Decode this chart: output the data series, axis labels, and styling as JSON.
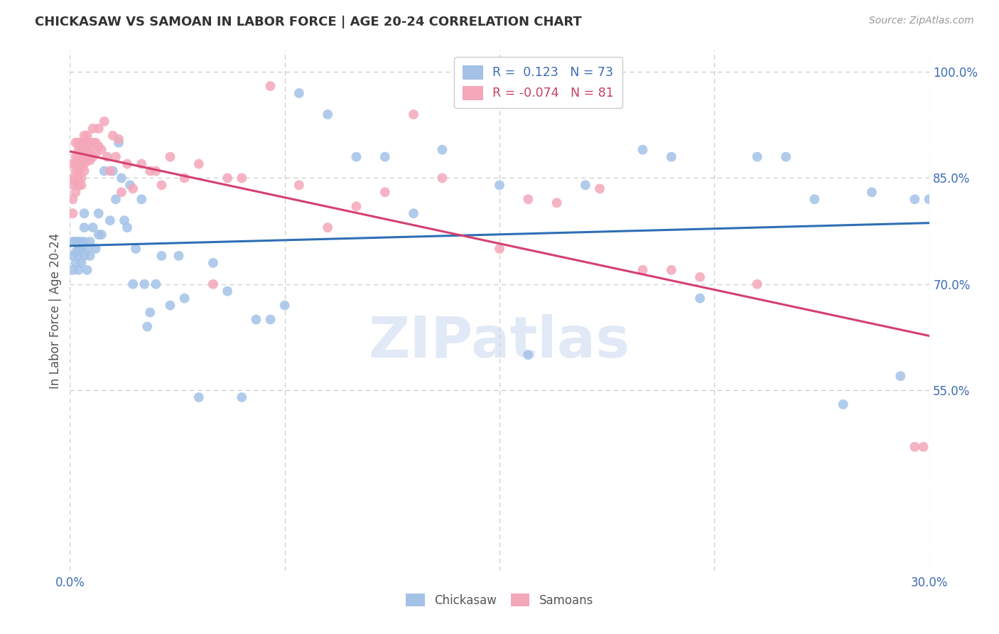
{
  "title": "CHICKASAW VS SAMOAN IN LABOR FORCE | AGE 20-24 CORRELATION CHART",
  "source": "Source: ZipAtlas.com",
  "ylabel": "In Labor Force | Age 20-24",
  "xlim": [
    0.0,
    0.3
  ],
  "ylim": [
    0.295,
    1.03
  ],
  "x_ticks": [
    0.0,
    0.075,
    0.15,
    0.225,
    0.3
  ],
  "x_tick_labels": [
    "0.0%",
    "",
    "",
    "",
    "30.0%"
  ],
  "y_ticks_right": [
    1.0,
    0.85,
    0.7,
    0.55
  ],
  "y_tick_labels_right": [
    "100.0%",
    "85.0%",
    "70.0%",
    "55.0%"
  ],
  "blue_color": "#a4c2e8",
  "pink_color": "#f4a7b9",
  "blue_line_color": "#2e6fb5",
  "pink_line_color": "#d44070",
  "R_blue": 0.123,
  "N_blue": 73,
  "R_pink": -0.074,
  "N_pink": 81,
  "legend_label_blue": "Chickasaw",
  "legend_label_pink": "Samoans",
  "watermark": "ZIPatlas",
  "background_color": "#ffffff",
  "grid_color": "#cccccc",
  "blue_scatter_x": [
    0.001,
    0.001,
    0.001,
    0.002,
    0.002,
    0.002,
    0.003,
    0.003,
    0.003,
    0.003,
    0.004,
    0.004,
    0.004,
    0.005,
    0.005,
    0.005,
    0.005,
    0.006,
    0.006,
    0.007,
    0.007,
    0.008,
    0.009,
    0.01,
    0.01,
    0.011,
    0.012,
    0.014,
    0.015,
    0.016,
    0.017,
    0.018,
    0.019,
    0.02,
    0.021,
    0.022,
    0.023,
    0.025,
    0.026,
    0.027,
    0.028,
    0.03,
    0.032,
    0.035,
    0.038,
    0.04,
    0.045,
    0.05,
    0.055,
    0.06,
    0.065,
    0.07,
    0.075,
    0.08,
    0.09,
    0.1,
    0.11,
    0.12,
    0.13,
    0.15,
    0.16,
    0.18,
    0.2,
    0.21,
    0.22,
    0.24,
    0.25,
    0.26,
    0.27,
    0.28,
    0.29,
    0.295,
    0.3
  ],
  "blue_scatter_y": [
    0.76,
    0.74,
    0.72,
    0.76,
    0.745,
    0.73,
    0.76,
    0.75,
    0.74,
    0.72,
    0.76,
    0.75,
    0.73,
    0.8,
    0.78,
    0.76,
    0.74,
    0.75,
    0.72,
    0.76,
    0.74,
    0.78,
    0.75,
    0.8,
    0.77,
    0.77,
    0.86,
    0.79,
    0.86,
    0.82,
    0.9,
    0.85,
    0.79,
    0.78,
    0.84,
    0.7,
    0.75,
    0.82,
    0.7,
    0.64,
    0.66,
    0.7,
    0.74,
    0.67,
    0.74,
    0.68,
    0.54,
    0.73,
    0.69,
    0.54,
    0.65,
    0.65,
    0.67,
    0.97,
    0.94,
    0.88,
    0.88,
    0.8,
    0.89,
    0.84,
    0.6,
    0.84,
    0.89,
    0.88,
    0.68,
    0.88,
    0.88,
    0.82,
    0.53,
    0.83,
    0.57,
    0.82,
    0.82
  ],
  "pink_scatter_x": [
    0.001,
    0.001,
    0.001,
    0.001,
    0.001,
    0.002,
    0.002,
    0.002,
    0.002,
    0.002,
    0.002,
    0.003,
    0.003,
    0.003,
    0.003,
    0.003,
    0.003,
    0.003,
    0.004,
    0.004,
    0.004,
    0.004,
    0.004,
    0.004,
    0.005,
    0.005,
    0.005,
    0.005,
    0.005,
    0.005,
    0.006,
    0.006,
    0.006,
    0.006,
    0.007,
    0.007,
    0.007,
    0.008,
    0.008,
    0.008,
    0.009,
    0.009,
    0.01,
    0.01,
    0.011,
    0.012,
    0.013,
    0.014,
    0.015,
    0.016,
    0.017,
    0.018,
    0.02,
    0.022,
    0.025,
    0.028,
    0.03,
    0.032,
    0.035,
    0.04,
    0.045,
    0.05,
    0.055,
    0.06,
    0.07,
    0.08,
    0.09,
    0.1,
    0.11,
    0.12,
    0.13,
    0.15,
    0.16,
    0.17,
    0.185,
    0.2,
    0.21,
    0.22,
    0.24,
    0.295,
    0.298
  ],
  "pink_scatter_y": [
    0.87,
    0.85,
    0.84,
    0.82,
    0.8,
    0.9,
    0.88,
    0.87,
    0.86,
    0.845,
    0.83,
    0.9,
    0.89,
    0.88,
    0.87,
    0.86,
    0.85,
    0.84,
    0.9,
    0.89,
    0.88,
    0.865,
    0.85,
    0.84,
    0.91,
    0.9,
    0.89,
    0.88,
    0.87,
    0.86,
    0.91,
    0.9,
    0.89,
    0.875,
    0.9,
    0.89,
    0.875,
    0.92,
    0.9,
    0.88,
    0.9,
    0.885,
    0.92,
    0.895,
    0.89,
    0.93,
    0.88,
    0.86,
    0.91,
    0.88,
    0.905,
    0.83,
    0.87,
    0.835,
    0.87,
    0.86,
    0.86,
    0.84,
    0.88,
    0.85,
    0.87,
    0.7,
    0.85,
    0.85,
    0.98,
    0.84,
    0.78,
    0.81,
    0.83,
    0.94,
    0.85,
    0.75,
    0.82,
    0.815,
    0.835,
    0.72,
    0.72,
    0.71,
    0.7,
    0.47,
    0.47
  ]
}
